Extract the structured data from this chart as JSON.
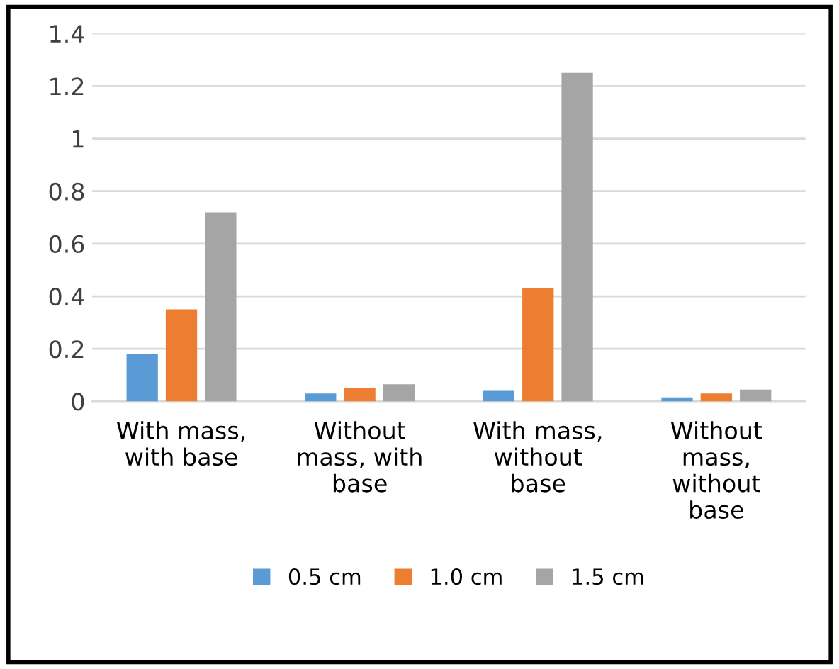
{
  "chart_data": {
    "type": "bar",
    "categories": [
      "With mass,\nwith base",
      "Without\nmass, with\nbase",
      "With mass,\nwithout\nbase",
      "Without\nmass,\nwithout\nbase"
    ],
    "series": [
      {
        "name": "0.5 cm",
        "color": "#5b9bd5",
        "values": [
          0.18,
          0.03,
          0.04,
          0.015
        ]
      },
      {
        "name": "1.0 cm",
        "color": "#ed7d31",
        "values": [
          0.35,
          0.05,
          0.43,
          0.03
        ]
      },
      {
        "name": "1.5 cm",
        "color": "#a5a5a5",
        "values": [
          0.72,
          0.065,
          1.25,
          0.045
        ]
      }
    ],
    "ylim": [
      0,
      1.4
    ],
    "yticks": [
      0,
      0.2,
      0.4,
      0.6,
      0.8,
      1,
      1.2,
      1.4
    ],
    "grid": "y",
    "legend": "bottom"
  }
}
